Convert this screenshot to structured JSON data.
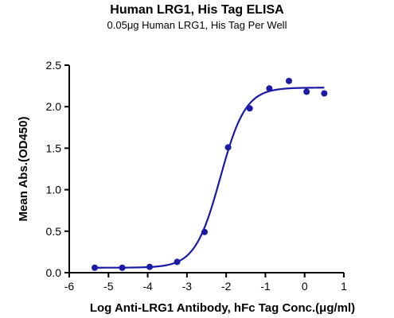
{
  "chart_data": {
    "type": "scatter",
    "title": "Human LRG1, His Tag ELISA",
    "subtitle": "0.05μg Human LRG1, His Tag Per Well",
    "xlabel": "Log Anti-LRG1 Antibody, hFc Tag Conc.(μg/ml)",
    "ylabel": "Mean Abs.(OD450)",
    "xlim": [
      -6,
      1
    ],
    "ylim": [
      0,
      2.5
    ],
    "xticks": [
      -6,
      -5,
      -4,
      -3,
      -2,
      -1,
      0,
      1
    ],
    "yticks": [
      0.0,
      0.5,
      1.0,
      1.5,
      2.0,
      2.5
    ],
    "xtick_labels": [
      "-6",
      "-5",
      "-4",
      "-3",
      "-2",
      "-1",
      "0",
      "1"
    ],
    "ytick_labels": [
      "0.0",
      "0.5",
      "1.0",
      "1.5",
      "2.0",
      "2.5"
    ],
    "grid": false,
    "series": [
      {
        "color": "#1a1aa6",
        "x": [
          -5.35,
          -4.65,
          -3.95,
          -3.25,
          -2.55,
          -1.95,
          -1.4,
          -0.9,
          -0.4,
          0.05,
          0.5
        ],
        "y": [
          0.06,
          0.06,
          0.07,
          0.13,
          0.49,
          1.51,
          1.98,
          2.22,
          2.31,
          2.18,
          2.16
        ]
      }
    ],
    "fit": {
      "type": "4PL",
      "color": "#1a1aa6",
      "bottom": 0.06,
      "top": 2.23,
      "log_ec50": -2.15,
      "hill": 1.35
    }
  }
}
